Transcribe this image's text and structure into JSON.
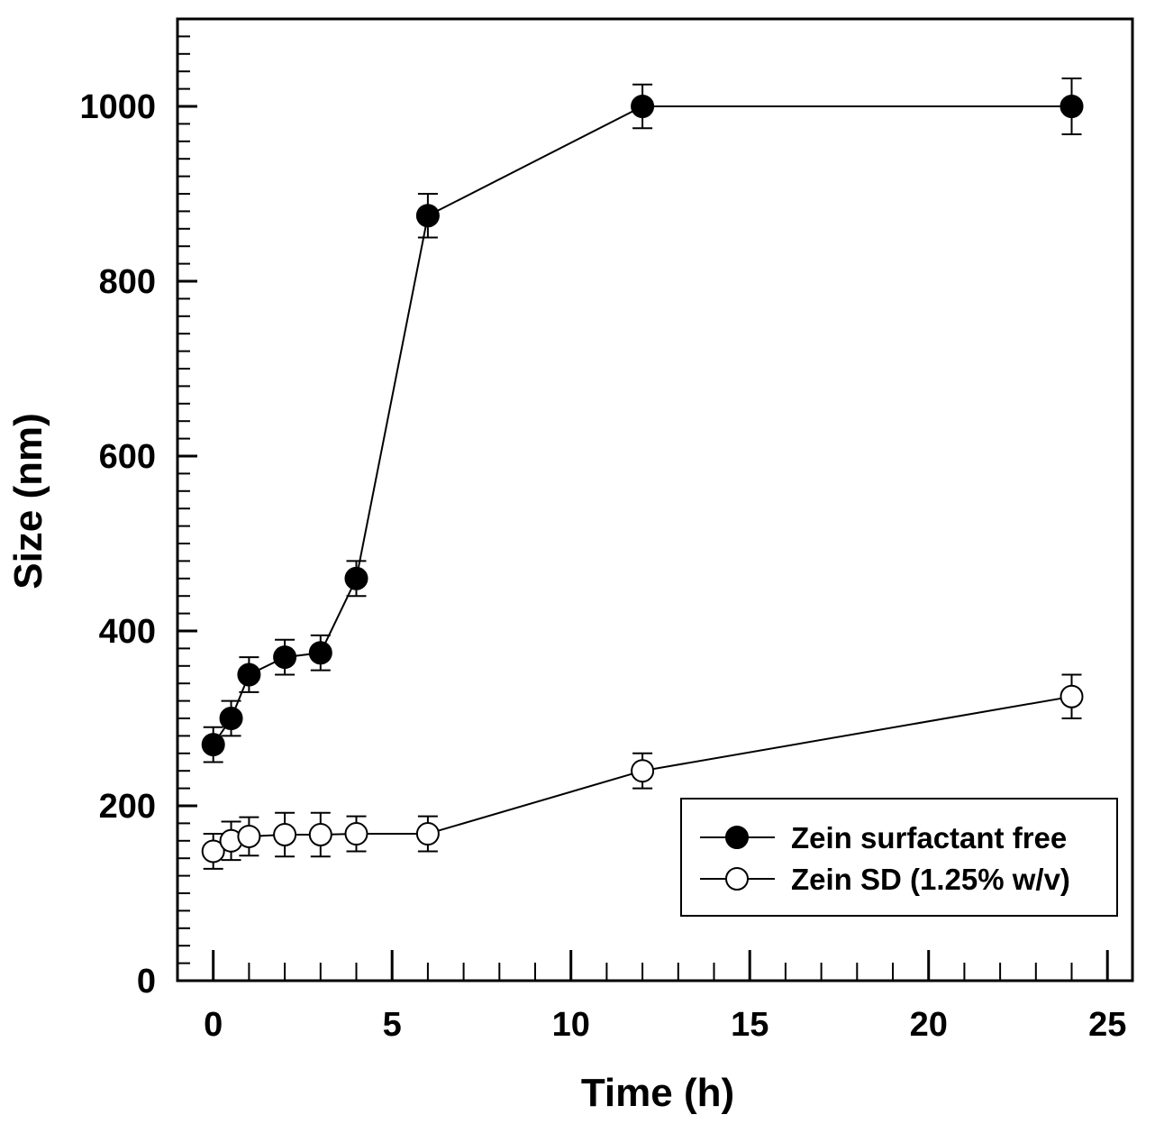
{
  "chart_data": {
    "type": "line",
    "title": "",
    "xlabel": "Time (h)",
    "ylabel": "Size (nm)",
    "xlim": [
      -1,
      25.7
    ],
    "ylim": [
      0,
      1100
    ],
    "xticks": [
      0,
      5,
      10,
      15,
      20,
      25
    ],
    "xtick_labels": [
      "0",
      "5",
      "10",
      "15",
      "20",
      "25"
    ],
    "xminor_step": 1,
    "yticks": [
      0,
      200,
      400,
      600,
      800,
      1000
    ],
    "ytick_labels": [
      "0",
      "200",
      "400",
      "600",
      "800",
      "1000"
    ],
    "yminor_step": 20,
    "grid": false,
    "legend_position": "bottom-right",
    "series": [
      {
        "name": "Zein surfactant free",
        "marker": "filled-circle",
        "color": "#000000",
        "x": [
          0,
          0.5,
          1,
          2,
          3,
          4,
          6,
          12,
          24
        ],
        "y": [
          270,
          300,
          350,
          370,
          375,
          460,
          875,
          1000,
          1000
        ],
        "error": [
          20,
          20,
          20,
          20,
          20,
          20,
          25,
          25,
          32
        ]
      },
      {
        "name": "Zein SD (1.25% w/v)",
        "marker": "open-circle",
        "color": "#000000",
        "x": [
          0,
          0.5,
          1,
          2,
          3,
          4,
          6,
          12,
          24
        ],
        "y": [
          148,
          160,
          165,
          167,
          167,
          168,
          168,
          240,
          325
        ],
        "error": [
          20,
          22,
          22,
          25,
          25,
          20,
          20,
          20,
          25
        ]
      }
    ]
  }
}
